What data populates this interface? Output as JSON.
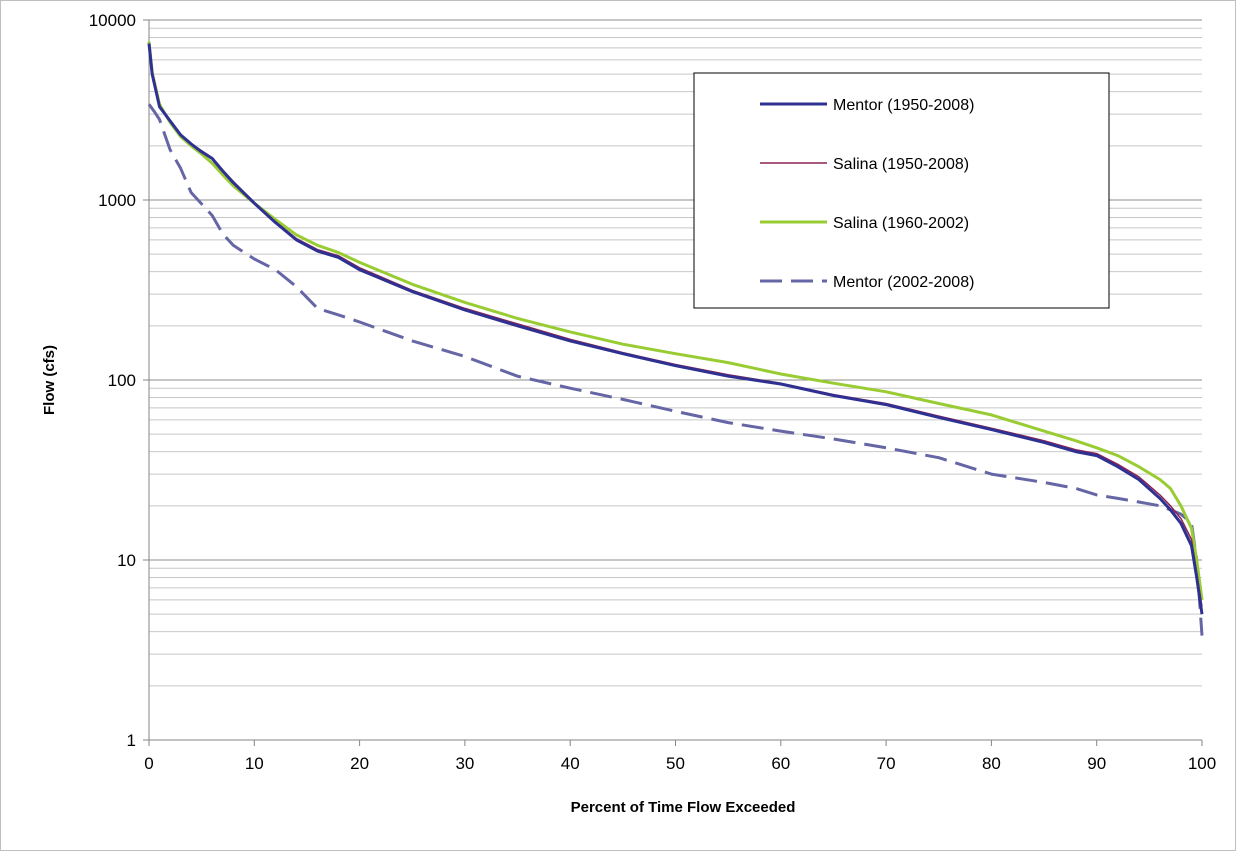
{
  "chart_data": {
    "type": "line",
    "title": "",
    "xlabel": "Percent of Time Flow Exceeded",
    "ylabel": "Flow (cfs)",
    "xlim": [
      0,
      100
    ],
    "ylim": [
      1,
      10000
    ],
    "yscale": "log",
    "x_ticks": [
      "0",
      "10",
      "20",
      "30",
      "40",
      "50",
      "60",
      "70",
      "80",
      "90",
      "100"
    ],
    "y_ticks": [
      "1",
      "10",
      "100",
      "1000",
      "10000"
    ],
    "grid": true,
    "legend_position": "top-right",
    "series": [
      {
        "name": "Mentor (1950-2008)",
        "color": "#2e3192",
        "style": "solid",
        "x": [
          0,
          0.3,
          1,
          2,
          3,
          4,
          5,
          6,
          7,
          8,
          10,
          12,
          14,
          16,
          18,
          20,
          25,
          30,
          35,
          40,
          45,
          50,
          55,
          60,
          65,
          70,
          75,
          80,
          85,
          88,
          90,
          92,
          94,
          96,
          97,
          98,
          99,
          99.5,
          100
        ],
        "y": [
          7400,
          5000,
          3300,
          2750,
          2300,
          2050,
          1850,
          1700,
          1450,
          1250,
          960,
          750,
          600,
          520,
          480,
          410,
          310,
          245,
          200,
          165,
          140,
          120,
          105,
          95,
          82,
          73,
          62,
          53,
          45,
          40,
          38,
          33,
          28,
          22,
          19,
          16,
          12,
          8,
          5
        ]
      },
      {
        "name": "Salina (1950-2008)",
        "color": "#8b2252",
        "style": "solid",
        "x": [
          0,
          0.3,
          1,
          2,
          3,
          4,
          5,
          6,
          7,
          8,
          10,
          12,
          14,
          16,
          18,
          20,
          25,
          30,
          35,
          40,
          45,
          50,
          55,
          60,
          65,
          70,
          75,
          80,
          85,
          88,
          90,
          92,
          94,
          96,
          97,
          98,
          99,
          99.5,
          100
        ],
        "y": [
          7400,
          5000,
          3300,
          2750,
          2300,
          2050,
          1880,
          1720,
          1470,
          1270,
          970,
          760,
          610,
          530,
          490,
          420,
          315,
          250,
          205,
          168,
          142,
          122,
          107,
          96,
          83,
          74,
          63,
          54,
          46,
          41,
          39,
          34,
          29,
          23,
          20,
          17,
          13,
          8.5,
          5.5
        ]
      },
      {
        "name": "Salina (1960-2002)",
        "color": "#99cc33",
        "style": "solid",
        "x": [
          0,
          0.3,
          1,
          2,
          3,
          4,
          5,
          6,
          7,
          8,
          10,
          12,
          14,
          16,
          18,
          20,
          25,
          30,
          35,
          40,
          45,
          50,
          55,
          60,
          65,
          70,
          75,
          80,
          85,
          88,
          90,
          92,
          94,
          96,
          97,
          98,
          99,
          99.5,
          100
        ],
        "y": [
          7600,
          5100,
          3400,
          2700,
          2250,
          2000,
          1800,
          1600,
          1380,
          1200,
          960,
          780,
          640,
          560,
          510,
          450,
          340,
          270,
          220,
          185,
          158,
          140,
          125,
          108,
          96,
          86,
          74,
          64,
          52,
          46,
          42,
          38,
          33,
          28,
          25,
          20,
          15,
          10,
          6
        ]
      },
      {
        "name": "Mentor (2002-2008)",
        "color": "#6666a6",
        "style": "dashed",
        "x": [
          0,
          0.5,
          1,
          2,
          3,
          4,
          5,
          6,
          7,
          8,
          10,
          12,
          14,
          16,
          18,
          20,
          25,
          30,
          35,
          40,
          45,
          50,
          55,
          60,
          65,
          70,
          75,
          80,
          85,
          88,
          90,
          92,
          94,
          96,
          97,
          98,
          99,
          99.5,
          100
        ],
        "y": [
          3400,
          3100,
          2800,
          1900,
          1500,
          1100,
          950,
          820,
          650,
          560,
          470,
          410,
          330,
          250,
          230,
          210,
          165,
          135,
          105,
          90,
          78,
          67,
          58,
          52,
          47,
          42,
          37,
          30,
          27,
          25,
          23,
          22,
          21,
          20,
          19,
          18,
          16,
          10,
          3.8
        ]
      }
    ]
  }
}
